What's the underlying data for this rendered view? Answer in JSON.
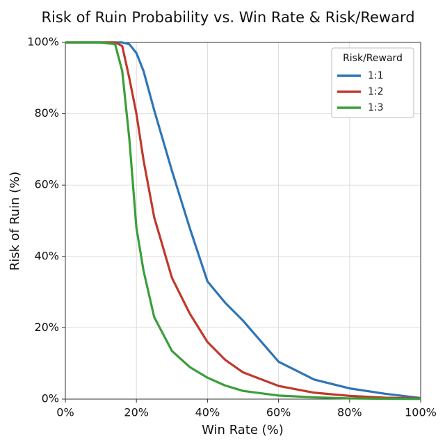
{
  "chart_data": {
    "type": "line",
    "title": "Risk of Ruin Probability vs. Win Rate & Risk/Reward",
    "xlabel": "Win Rate (%)",
    "ylabel": "Risk of Ruin (%)",
    "x": [
      0,
      10,
      14,
      16,
      18,
      20,
      22,
      25,
      30,
      35,
      40,
      45,
      50,
      60,
      70,
      80,
      90,
      100
    ],
    "series": [
      {
        "name": "1:1",
        "color": "#2e75b6",
        "values": [
          100,
          100,
          100,
          100,
          99.5,
          97,
          92,
          81,
          64,
          48,
          33,
          27,
          22,
          10.5,
          5.5,
          3,
          1.5,
          0.3
        ]
      },
      {
        "name": "1:2",
        "color": "#c0392b",
        "values": [
          100,
          100,
          100,
          99,
          90,
          80,
          67,
          51,
          34,
          24,
          16,
          11,
          7.5,
          3.7,
          1.8,
          0.9,
          0.4,
          0.2
        ]
      },
      {
        "name": "1:3",
        "color": "#3a9e3a",
        "values": [
          100,
          100,
          99.5,
          92,
          73,
          48,
          36,
          23,
          13.5,
          9,
          6,
          3.8,
          2.3,
          1,
          0.5,
          0.2,
          0.1,
          0.05
        ]
      }
    ],
    "legend_title": "Risk/Reward",
    "legend": "upper right",
    "grid": true,
    "xlim": [
      0,
      100
    ],
    "ylim": [
      0,
      100
    ],
    "xticks": [
      {
        "value": 0,
        "label": "0%"
      },
      {
        "value": 20,
        "label": "20%"
      },
      {
        "value": 40,
        "label": "40%"
      },
      {
        "value": 60,
        "label": "60%"
      },
      {
        "value": 80,
        "label": "80%"
      },
      {
        "value": 100,
        "label": "100%"
      }
    ],
    "yticks": [
      {
        "value": 0,
        "label": "0%"
      },
      {
        "value": 20,
        "label": "20%"
      },
      {
        "value": 40,
        "label": "40%"
      },
      {
        "value": 60,
        "label": "60%"
      },
      {
        "value": 80,
        "label": "80%"
      },
      {
        "value": 100,
        "label": "100%"
      }
    ]
  }
}
